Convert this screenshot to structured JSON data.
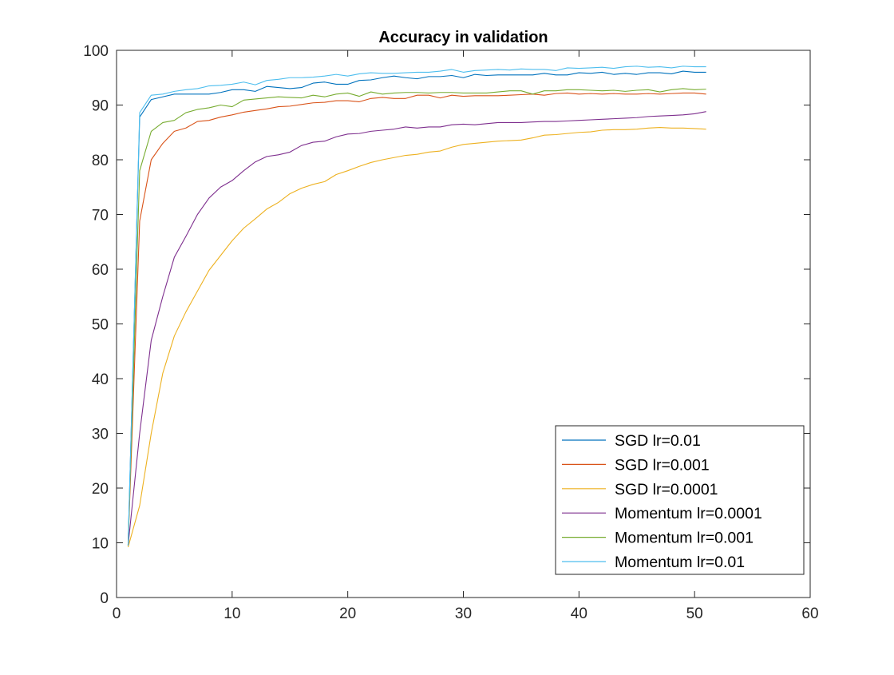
{
  "chart_data": {
    "type": "line",
    "title": "Accuracy in validation",
    "xlabel": "",
    "ylabel": "",
    "xlim": [
      0,
      60
    ],
    "ylim": [
      0,
      100
    ],
    "xticks": [
      0,
      10,
      20,
      30,
      40,
      50,
      60
    ],
    "yticks": [
      0,
      10,
      20,
      30,
      40,
      50,
      60,
      70,
      80,
      90,
      100
    ],
    "grid": false,
    "legend_position": "bottom-right",
    "x": [
      1,
      2,
      3,
      4,
      5,
      6,
      7,
      8,
      9,
      10,
      11,
      12,
      13,
      14,
      15,
      16,
      17,
      18,
      19,
      20,
      21,
      22,
      23,
      24,
      25,
      26,
      27,
      28,
      29,
      30,
      31,
      32,
      33,
      34,
      35,
      36,
      37,
      38,
      39,
      40,
      41,
      42,
      43,
      44,
      45,
      46,
      47,
      48,
      49,
      50,
      51
    ],
    "series": [
      {
        "name": "SGD lr=0.01",
        "color": "#0072BD",
        "values": [
          9.5,
          87.8,
          91.0,
          91.5,
          92.0,
          92.0,
          92.0,
          92.0,
          92.3,
          92.8,
          92.8,
          92.5,
          93.4,
          93.2,
          93.0,
          93.2,
          94.0,
          94.2,
          93.8,
          93.8,
          94.5,
          94.6,
          95.0,
          95.3,
          95.0,
          94.8,
          95.2,
          95.2,
          95.4,
          95.0,
          95.6,
          95.4,
          95.5,
          95.5,
          95.5,
          95.5,
          95.8,
          95.5,
          95.5,
          95.9,
          95.8,
          96.0,
          95.6,
          95.8,
          95.6,
          95.9,
          95.9,
          95.7,
          96.2,
          96.0,
          96.0
        ]
      },
      {
        "name": "SGD lr=0.001",
        "color": "#D95319",
        "values": [
          9.5,
          68.8,
          80.0,
          83.0,
          85.2,
          85.8,
          87.0,
          87.2,
          87.8,
          88.2,
          88.7,
          89.0,
          89.3,
          89.7,
          89.8,
          90.1,
          90.4,
          90.5,
          90.8,
          90.8,
          90.6,
          91.2,
          91.4,
          91.2,
          91.2,
          91.8,
          91.8,
          91.3,
          91.8,
          91.6,
          91.7,
          91.7,
          91.7,
          91.8,
          91.9,
          92.0,
          91.8,
          92.1,
          92.2,
          92.0,
          92.1,
          92.0,
          92.1,
          92.0,
          92.0,
          92.1,
          92.0,
          92.1,
          92.2,
          92.2,
          92.0
        ]
      },
      {
        "name": "SGD lr=0.0001",
        "color": "#EDB120",
        "values": [
          9.2,
          16.8,
          30.0,
          41.0,
          47.8,
          52.2,
          56.0,
          59.8,
          62.5,
          65.2,
          67.5,
          69.2,
          71.0,
          72.2,
          73.8,
          74.8,
          75.5,
          76.0,
          77.3,
          78.0,
          78.8,
          79.5,
          80.0,
          80.4,
          80.8,
          81.0,
          81.4,
          81.6,
          82.3,
          82.8,
          83.0,
          83.2,
          83.4,
          83.5,
          83.6,
          84.0,
          84.5,
          84.6,
          84.8,
          85.0,
          85.1,
          85.4,
          85.5,
          85.5,
          85.6,
          85.8,
          85.9,
          85.8,
          85.8,
          85.7,
          85.6
        ]
      },
      {
        "name": "Momentum lr=0.0001",
        "color": "#7E2F8E",
        "values": [
          9.5,
          30.0,
          47.0,
          55.0,
          62.2,
          66.0,
          70.0,
          73.0,
          75.0,
          76.2,
          78.0,
          79.6,
          80.6,
          80.9,
          81.4,
          82.6,
          83.2,
          83.4,
          84.2,
          84.7,
          84.8,
          85.2,
          85.4,
          85.6,
          86.0,
          85.8,
          86.0,
          86.0,
          86.4,
          86.5,
          86.4,
          86.6,
          86.8,
          86.8,
          86.8,
          86.9,
          87.0,
          87.0,
          87.1,
          87.2,
          87.3,
          87.4,
          87.5,
          87.6,
          87.7,
          87.9,
          88.0,
          88.1,
          88.2,
          88.4,
          88.8
        ]
      },
      {
        "name": "Momentum lr=0.001",
        "color": "#77AC30",
        "values": [
          9.5,
          78.0,
          85.2,
          86.8,
          87.2,
          88.6,
          89.2,
          89.5,
          90.0,
          89.7,
          90.9,
          91.1,
          91.3,
          91.5,
          91.4,
          91.3,
          91.8,
          91.5,
          92.0,
          92.2,
          91.6,
          92.4,
          92.0,
          92.2,
          92.3,
          92.3,
          92.2,
          92.3,
          92.3,
          92.2,
          92.2,
          92.2,
          92.4,
          92.6,
          92.6,
          92.0,
          92.6,
          92.6,
          92.8,
          92.8,
          92.7,
          92.6,
          92.7,
          92.5,
          92.7,
          92.8,
          92.4,
          92.8,
          93.0,
          92.8,
          92.9
        ]
      },
      {
        "name": "Momentum lr=0.01",
        "color": "#4DBEEE",
        "values": [
          9.5,
          88.6,
          91.8,
          92.0,
          92.5,
          92.8,
          93.0,
          93.5,
          93.6,
          93.8,
          94.2,
          93.7,
          94.5,
          94.7,
          95.0,
          95.0,
          95.1,
          95.3,
          95.6,
          95.3,
          95.7,
          95.9,
          95.8,
          95.8,
          95.9,
          96.0,
          96.0,
          96.2,
          96.5,
          96.0,
          96.3,
          96.4,
          96.5,
          96.4,
          96.6,
          96.5,
          96.5,
          96.3,
          96.8,
          96.7,
          96.8,
          96.9,
          96.7,
          97.0,
          97.1,
          96.9,
          97.0,
          96.8,
          97.1,
          97.0,
          97.0
        ]
      }
    ]
  }
}
